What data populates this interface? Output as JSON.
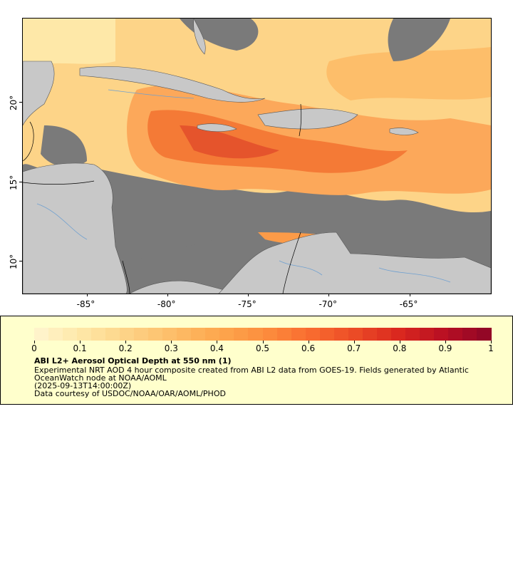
{
  "map": {
    "x_axis_ticks": [
      {
        "label": "-85°",
        "lon": -85
      },
      {
        "label": "-80°",
        "lon": -80
      },
      {
        "label": "-75°",
        "lon": -75
      },
      {
        "label": "-70°",
        "lon": -70
      },
      {
        "label": "-65°",
        "lon": -65
      }
    ],
    "y_axis_ticks": [
      {
        "label": "20°",
        "lat": 20
      },
      {
        "label": "15°",
        "lat": 15
      },
      {
        "label": "10°",
        "lat": 10
      }
    ],
    "lon_range": [
      -89,
      -60
    ],
    "lat_range": [
      8,
      25.3
    ],
    "colors": {
      "no_data": "#7a7a7a",
      "land": "#c8c8c8",
      "rivers": "#6fa0d0",
      "borders": "#000000"
    }
  },
  "legend": {
    "colorbar_range": [
      0,
      1
    ],
    "tick_labels": [
      "0",
      "0.1",
      "0.2",
      "0.3",
      "0.4",
      "0.5",
      "0.6",
      "0.7",
      "0.8",
      "0.9",
      "1"
    ],
    "colormap": [
      "#fff5d0",
      "#fee8a8",
      "#fdd488",
      "#fdbe6a",
      "#fda84e",
      "#fc8f3e",
      "#f96d30",
      "#ec4c26",
      "#d9271f",
      "#b80f23",
      "#8c0626"
    ],
    "title": "ABI L2+ Aerosol Optical Depth at 550 nm (1)",
    "line1": "Experimental NRT AOD 4 hour composite created from ABI L2 data from GOES-19. Fields generated by Atlantic",
    "line2": "OceanWatch node at NOAA/AOML",
    "line3": "(2025-09-13T14:00:00Z)",
    "line4": "Data courtesy of USDOC/NOAA/OAR/AOML/PHOD"
  }
}
